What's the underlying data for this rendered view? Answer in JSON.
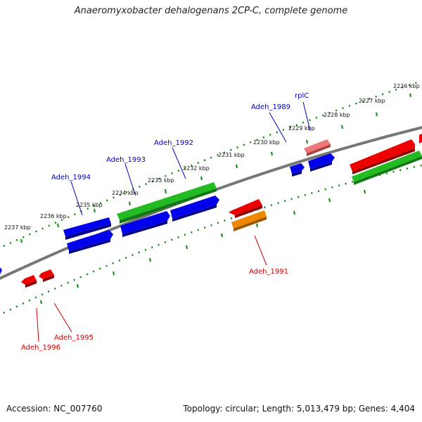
{
  "title": "Anaeromyxobacter dehalogenans 2CP-C, complete genome",
  "footer": {
    "accession": "Accession: NC_007760",
    "summary": "Topology: circular; Length: 5,013,479 bp; Genes: 4,404"
  },
  "colors": {
    "blue": "#0000ee",
    "green": "#22bb22",
    "red": "#ee0000",
    "pink": "#ee7777",
    "orange": "#ee8800",
    "backbone": "#777777",
    "ruler": "#118811",
    "label_blue": "#0000bb",
    "label_red": "#cc0000"
  },
  "ruler_labels": [
    "2226 kbp",
    "2227 kbp",
    "2228 kbp",
    "2229 kbp",
    "2230 kbp",
    "2231 kbp",
    "2232 kbp",
    "2233 kbp",
    "2234 kbp",
    "2235 kbp",
    "2236 kbp",
    "2237 kbp"
  ],
  "gene_labels": [
    {
      "text": "rplC",
      "color": "blue"
    },
    {
      "text": "Adeh_1989",
      "color": "blue"
    },
    {
      "text": "Adeh_1992",
      "color": "blue"
    },
    {
      "text": "Adeh_1993",
      "color": "blue"
    },
    {
      "text": "Adeh_1994",
      "color": "blue"
    },
    {
      "text": "Adeh_1991",
      "color": "red"
    },
    {
      "text": "Adeh_1995",
      "color": "red"
    },
    {
      "text": "Adeh_1996",
      "color": "red"
    }
  ]
}
